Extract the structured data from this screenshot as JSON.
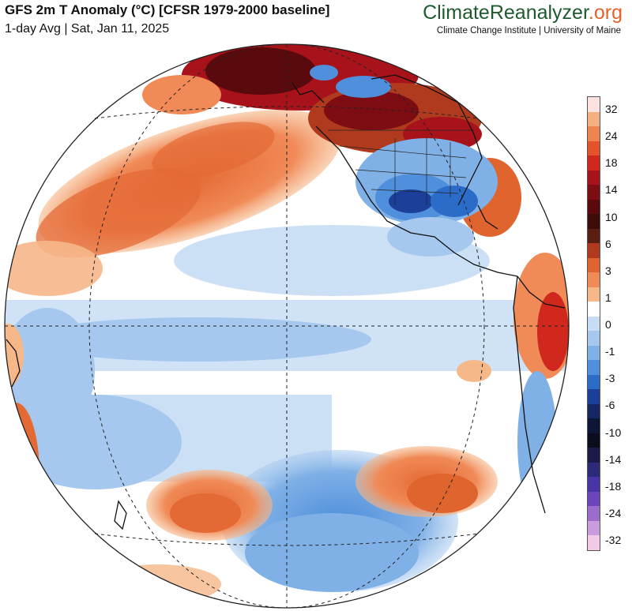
{
  "header": {
    "title": "GFS 2m T Anomaly (°C) [CFSR 1979-2000 baseline]",
    "subtitle": "1-day Avg | Sat, Jan 11, 2025"
  },
  "brand": {
    "name_part1": "Climate",
    "name_part2": "Reanalyzer",
    "name_part3": ".org",
    "institution": "Climate Change Institute | University of Maine"
  },
  "legend": {
    "unit": "°C",
    "labels": [
      "32",
      "24",
      "18",
      "14",
      "10",
      "6",
      "3",
      "1",
      "0",
      "-1",
      "-3",
      "-6",
      "-10",
      "-14",
      "-18",
      "-24",
      "-32"
    ],
    "colors": [
      "#fde2e2",
      "#f4b07e",
      "#ee8550",
      "#e4532a",
      "#d0281c",
      "#a8121a",
      "#7d0d12",
      "#5a0a0d",
      "#3e0d0a",
      "#5b1e12",
      "#b03a1e",
      "#e0642d",
      "#f08a57",
      "#f6b789",
      "#ffffff",
      "#c7ddf4",
      "#a6c8ee",
      "#7fb0e6",
      "#4f8fdb",
      "#2c6cc9",
      "#1c3f9a",
      "#142664",
      "#0e1638",
      "#0b0d1f",
      "#1d1a4a",
      "#2e2a7a",
      "#4a35a8",
      "#6b45bb",
      "#9a6ccc",
      "#c79ddd",
      "#f2c9e6"
    ]
  },
  "map": {
    "projection": "orthographic",
    "center_lon": -120,
    "center_lat": 0,
    "date": "Jan 11, 2025"
  }
}
